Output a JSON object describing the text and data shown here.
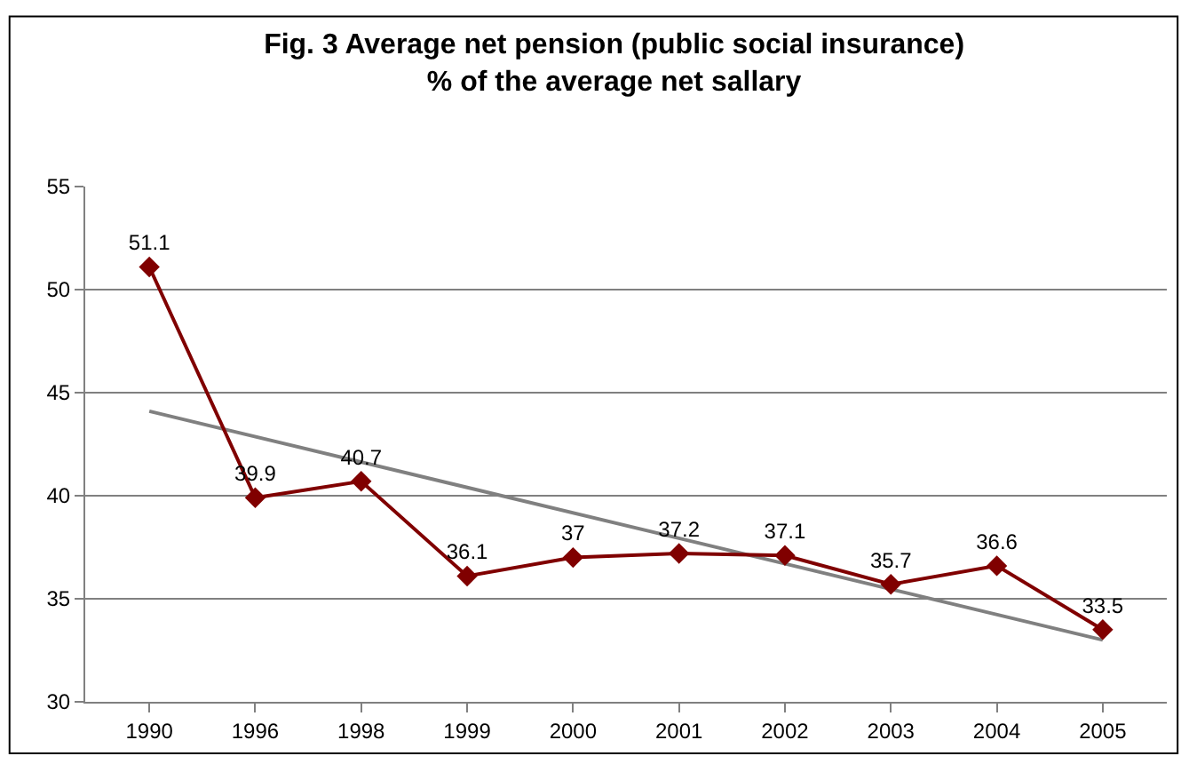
{
  "chart_data": {
    "type": "line",
    "title": "Fig. 3 Average net pension (public social insurance)\n% of the average net sallary",
    "categories": [
      "1990",
      "1996",
      "1998",
      "1999",
      "2000",
      "2001",
      "2002",
      "2003",
      "2004",
      "2005"
    ],
    "series": [
      {
        "type": "line",
        "color": "#808080",
        "values": [
          44.1,
          null,
          null,
          null,
          null,
          null,
          null,
          null,
          null,
          33.0
        ],
        "marker": "none"
      },
      {
        "color": "#800000",
        "values": [
          51.1,
          39.9,
          40.7,
          36.1,
          37,
          37.2,
          37.1,
          35.7,
          36.6,
          33.5
        ],
        "marker": "diamond",
        "data_labels": true
      }
    ],
    "ylim": [
      30,
      55
    ],
    "yticks": [
      30,
      35,
      40,
      45,
      50,
      55
    ],
    "grid": "y",
    "line_style": "solid"
  }
}
